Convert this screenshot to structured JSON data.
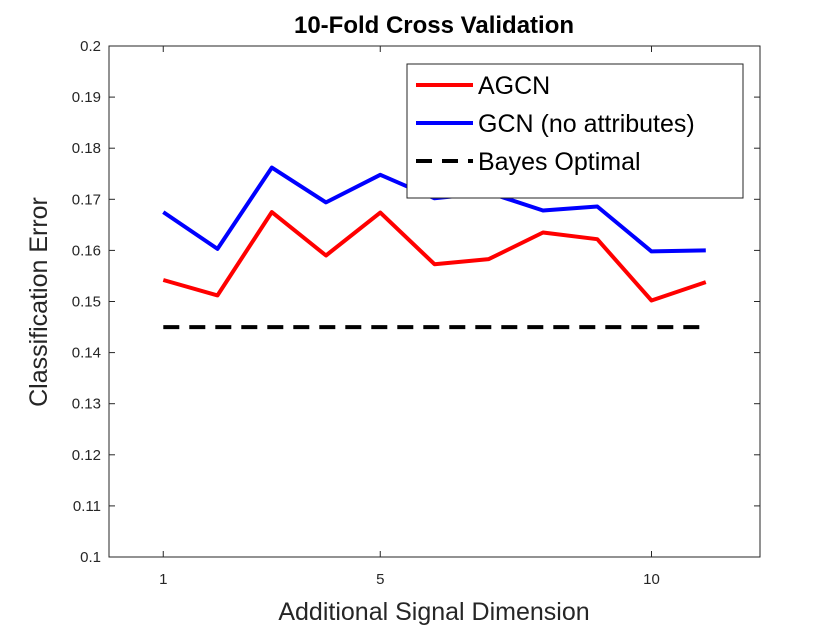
{
  "chart_data": {
    "type": "line",
    "title": "10-Fold Cross Validation",
    "xlabel": "Additional Signal Dimension",
    "ylabel": "Classification Error",
    "xlim": [
      0,
      12
    ],
    "ylim": [
      0.1,
      0.2
    ],
    "xticks": [
      1,
      5,
      10
    ],
    "xtick_labels": [
      "1",
      "5",
      "10"
    ],
    "yticks": [
      0.1,
      0.11,
      0.12,
      0.13,
      0.14,
      0.15,
      0.16,
      0.17,
      0.18,
      0.19,
      0.2
    ],
    "ytick_labels": [
      "0.1",
      "0.11",
      "0.12",
      "0.13",
      "0.14",
      "0.15",
      "0.16",
      "0.17",
      "0.18",
      "0.19",
      "0.2"
    ],
    "grid": false,
    "legend_position": "top-right",
    "series": [
      {
        "name": "AGCN",
        "color": "#ff0000",
        "style": "solid",
        "x": [
          1,
          2,
          3,
          4,
          5,
          6,
          7,
          8,
          9,
          10,
          11
        ],
        "values": [
          0.1542,
          0.1512,
          0.1675,
          0.159,
          0.1674,
          0.1573,
          0.1583,
          0.1635,
          0.1622,
          0.1502,
          0.1538
        ]
      },
      {
        "name": "GCN (no attributes)",
        "color": "#0000ff",
        "style": "solid",
        "x": [
          1,
          2,
          3,
          4,
          5,
          6,
          7,
          8,
          9,
          10,
          11
        ],
        "values": [
          0.1675,
          0.1603,
          0.1762,
          0.1694,
          0.1748,
          0.1702,
          0.1713,
          0.1678,
          0.1686,
          0.1598,
          0.16
        ]
      },
      {
        "name": "Bayes Optimal",
        "color": "#000000",
        "style": "dashed",
        "x": [
          1,
          11
        ],
        "values": [
          0.145,
          0.145
        ]
      }
    ]
  }
}
